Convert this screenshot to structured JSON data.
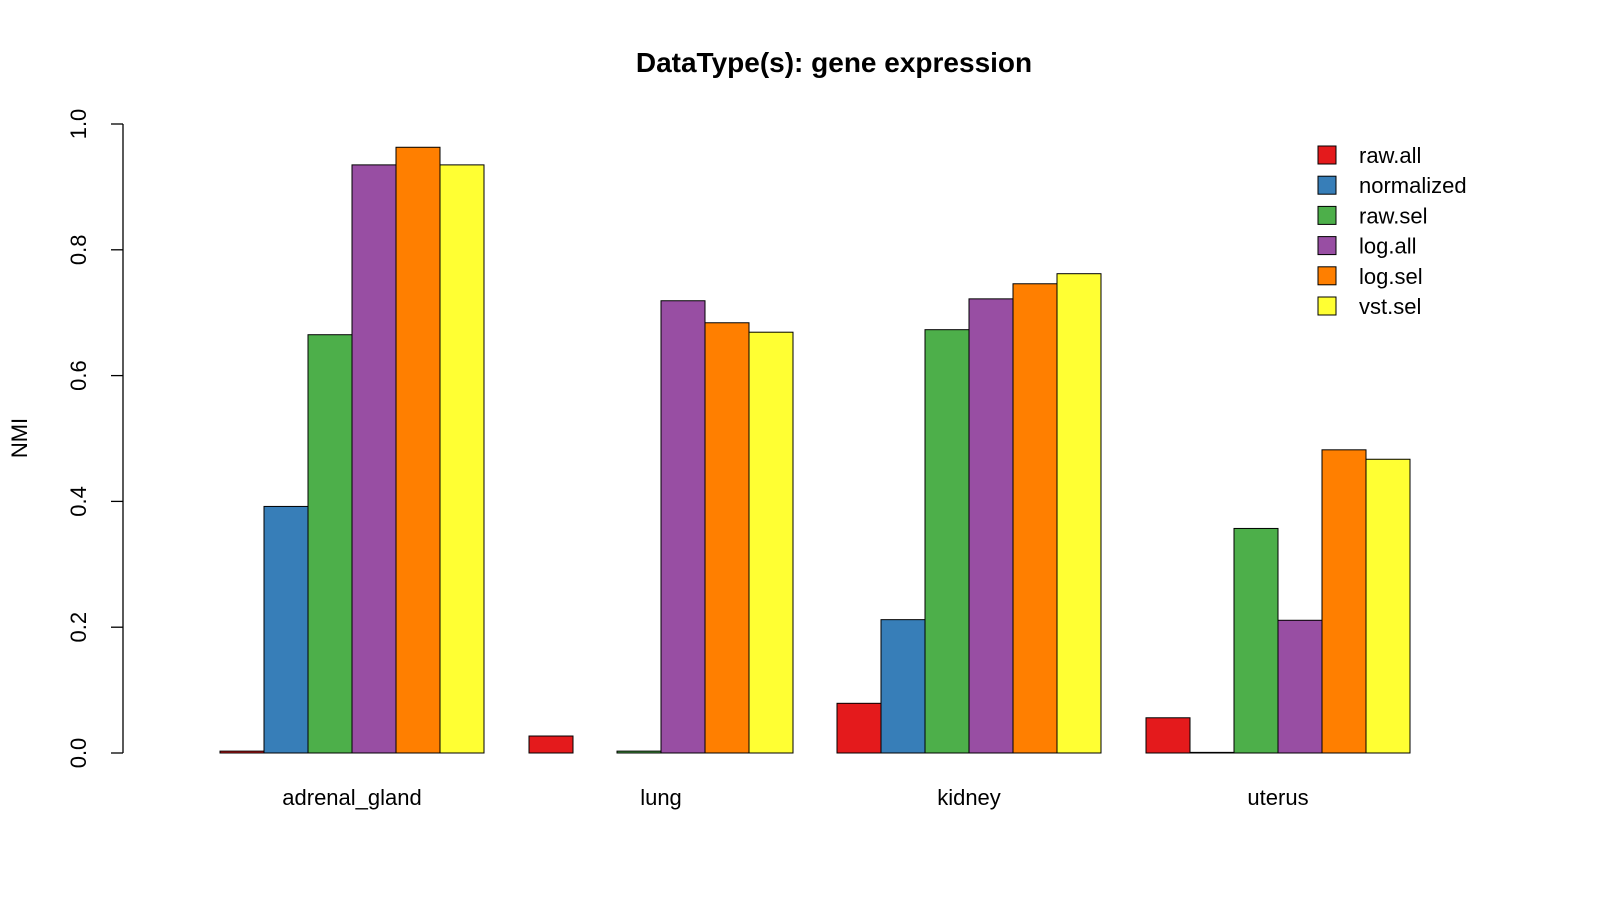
{
  "chart_data": {
    "type": "bar",
    "title": "DataType(s): gene expression",
    "xlabel": "",
    "ylabel": "NMI",
    "ylim": [
      0,
      1.0
    ],
    "yticks": [
      "0.0",
      "0.2",
      "0.4",
      "0.6",
      "0.8",
      "1.0"
    ],
    "categories": [
      "adrenal_gland",
      "lung",
      "kidney",
      "uterus"
    ],
    "legend_position": "top-right",
    "grid": false,
    "series": [
      {
        "name": "raw.all",
        "color": "#E41A1C",
        "values": [
          0.003,
          0.027,
          0.079,
          0.056
        ]
      },
      {
        "name": "normalized",
        "color": "#377EB8",
        "values": [
          0.392,
          0.0,
          0.212,
          0.001
        ]
      },
      {
        "name": "raw.sel",
        "color": "#4DAF4A",
        "values": [
          0.665,
          0.003,
          0.673,
          0.357
        ]
      },
      {
        "name": "log.all",
        "color": "#984EA3",
        "values": [
          0.935,
          0.719,
          0.722,
          0.211
        ]
      },
      {
        "name": "log.sel",
        "color": "#FF7F00",
        "values": [
          0.963,
          0.684,
          0.746,
          0.482
        ]
      },
      {
        "name": "vst.sel",
        "color": "#FFFF33",
        "values": [
          0.935,
          0.669,
          0.762,
          0.467
        ]
      }
    ]
  }
}
